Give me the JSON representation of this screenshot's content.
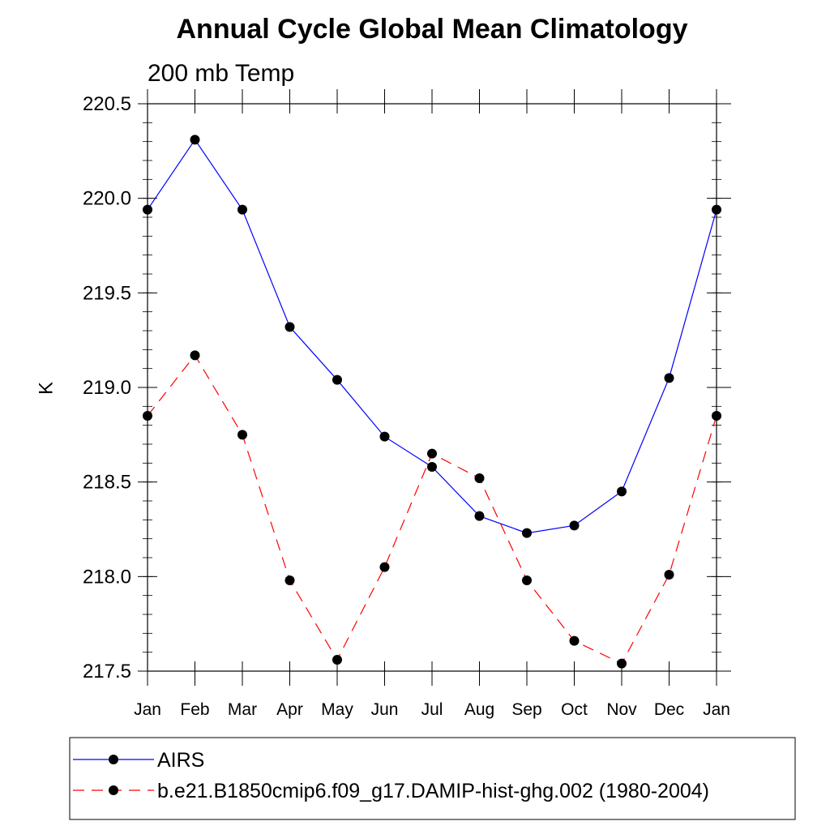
{
  "chart_data": {
    "type": "line",
    "title": "Annual Cycle Global Mean Climatology",
    "subtitle": "200 mb Temp",
    "xlabel": "",
    "ylabel": "K",
    "categories": [
      "Jan",
      "Feb",
      "Mar",
      "Apr",
      "May",
      "Jun",
      "Jul",
      "Aug",
      "Sep",
      "Oct",
      "Nov",
      "Dec",
      "Jan"
    ],
    "ylim": [
      217.5,
      220.5
    ],
    "yticks": [
      217.5,
      218.0,
      218.5,
      219.0,
      219.5,
      220.0,
      220.5
    ],
    "ytick_labels": [
      "217.5",
      "218.0",
      "218.5",
      "219.0",
      "219.5",
      "220.0",
      "220.5"
    ],
    "grid": false,
    "legend_position": "bottom",
    "series": [
      {
        "name": "AIRS",
        "color": "#0000ff",
        "dash": "solid",
        "values": [
          219.94,
          220.31,
          219.94,
          219.32,
          219.04,
          218.74,
          218.58,
          218.32,
          218.23,
          218.27,
          218.45,
          219.05,
          219.94
        ]
      },
      {
        "name": "b.e21.B1850cmip6.f09_g17.DAMIP-hist-ghg.002 (1980-2004)",
        "color": "#ff0000",
        "dash": "dashed",
        "values": [
          218.85,
          219.17,
          218.75,
          217.98,
          217.56,
          218.05,
          218.65,
          218.52,
          217.98,
          217.66,
          217.54,
          218.01,
          218.85
        ]
      }
    ]
  }
}
